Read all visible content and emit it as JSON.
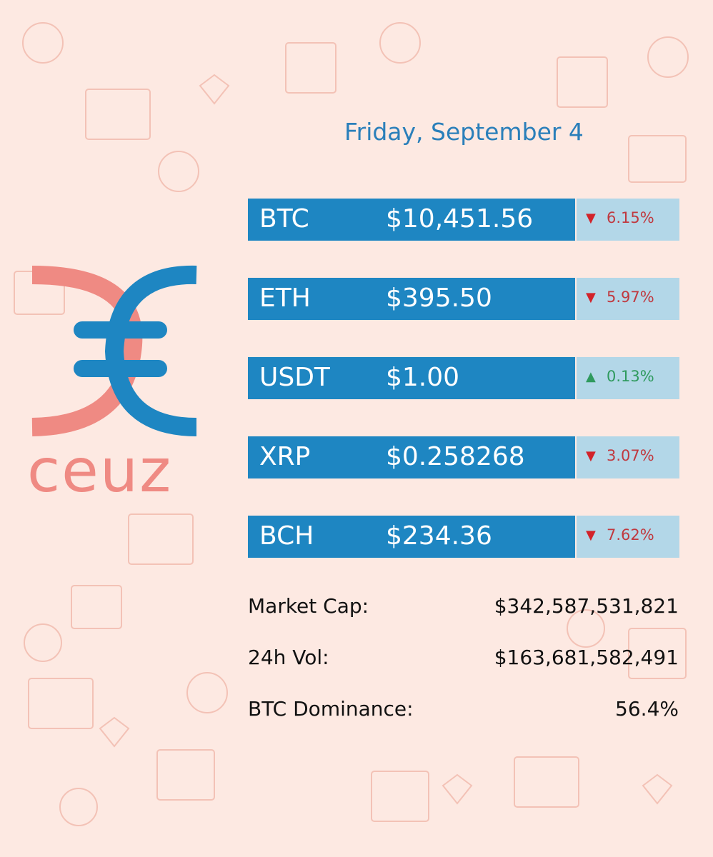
{
  "logo": {
    "name": "ceuz"
  },
  "date": "Friday, September 4",
  "coins": [
    {
      "symbol": "BTC",
      "price": "$10,451.56",
      "arrow": "▼",
      "change": "6.15%"
    },
    {
      "symbol": "ETH",
      "price": "$395.50",
      "arrow": "▼",
      "change": "5.97%"
    },
    {
      "symbol": "USDT",
      "price": "$1.00",
      "arrow": "▲",
      "change": "0.13%"
    },
    {
      "symbol": "XRP",
      "price": "$0.258268",
      "arrow": "▼",
      "change": "3.07%"
    },
    {
      "symbol": "BCH",
      "price": "$234.36",
      "arrow": "▼",
      "change": "7.62%"
    }
  ],
  "stats": [
    {
      "label": "Market Cap:",
      "value": "$342,587,531,821"
    },
    {
      "label": "24h Vol:",
      "value": "$163,681,582,491"
    },
    {
      "label": "BTC Dominance:",
      "value": "56.4%"
    }
  ]
}
